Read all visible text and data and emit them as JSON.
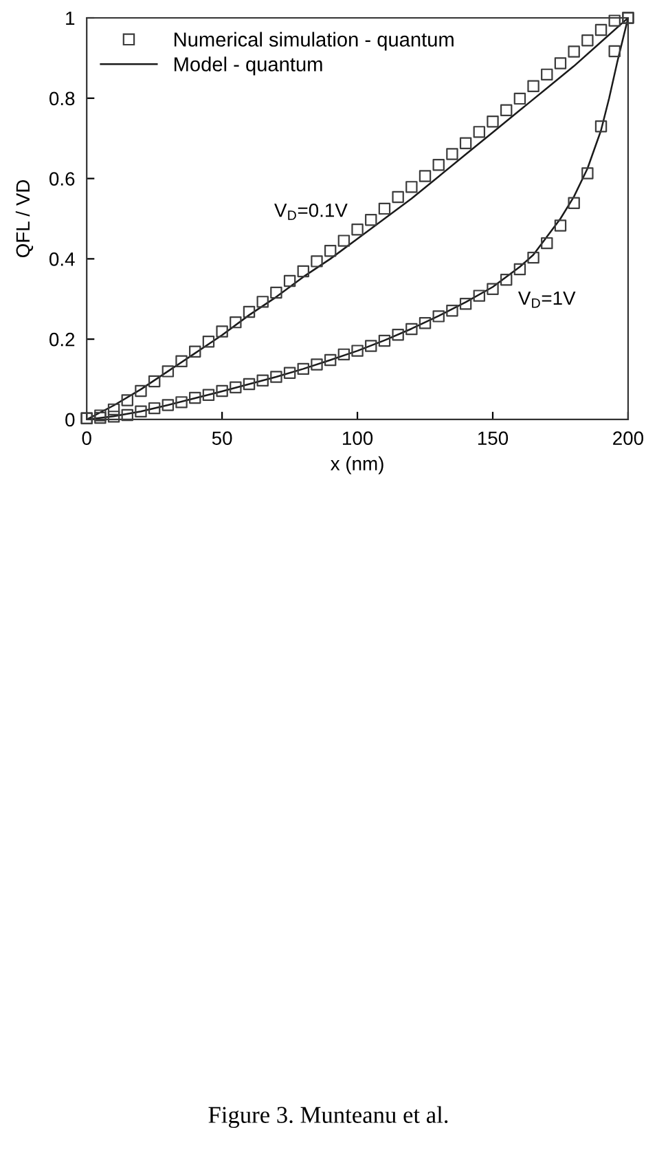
{
  "chart_data": {
    "type": "scatter",
    "xlabel": "x (nm)",
    "ylabel": "QFL / VD",
    "xlim": [
      0,
      200
    ],
    "xticks": [
      0,
      50,
      100,
      150,
      200
    ],
    "ylim": [
      0,
      1
    ],
    "yticks": [
      0,
      0.2,
      0.4,
      0.6,
      0.8,
      1
    ],
    "legend": "top left",
    "marker": "square",
    "series": [
      {
        "name": "Numerical simulation - quantum",
        "color": "#3c3c3c",
        "x": [
          0,
          5,
          10,
          15,
          20,
          25,
          30,
          35,
          40,
          45,
          50,
          55,
          60,
          65,
          70,
          75,
          80,
          85,
          90,
          95,
          100,
          105,
          110,
          115,
          120,
          125,
          130,
          135,
          140,
          145,
          150,
          155,
          160,
          165,
          170,
          175,
          180,
          185,
          190,
          195,
          200,
          0,
          5,
          10,
          15,
          20,
          25,
          30,
          35,
          40,
          45,
          50,
          55,
          60,
          65,
          70,
          75,
          80,
          85,
          90,
          95,
          100,
          105,
          110,
          115,
          120,
          125,
          130,
          135,
          140,
          145,
          150,
          155,
          160,
          165,
          170,
          175,
          180,
          185,
          190,
          195,
          200
        ],
        "values": [
          0.003,
          0.01,
          0.025,
          0.048,
          0.071,
          0.095,
          0.12,
          0.145,
          0.169,
          0.194,
          0.219,
          0.242,
          0.268,
          0.293,
          0.316,
          0.345,
          0.369,
          0.394,
          0.42,
          0.445,
          0.473,
          0.497,
          0.525,
          0.554,
          0.579,
          0.606,
          0.634,
          0.661,
          0.688,
          0.716,
          0.742,
          0.77,
          0.799,
          0.83,
          0.859,
          0.887,
          0.916,
          0.944,
          0.97,
          0.993,
          1.0,
          0.003,
          0.004,
          0.007,
          0.011,
          0.02,
          0.028,
          0.036,
          0.043,
          0.054,
          0.061,
          0.071,
          0.08,
          0.088,
          0.097,
          0.106,
          0.116,
          0.126,
          0.137,
          0.148,
          0.162,
          0.171,
          0.183,
          0.196,
          0.211,
          0.225,
          0.24,
          0.257,
          0.271,
          0.288,
          0.308,
          0.325,
          0.348,
          0.374,
          0.403,
          0.439,
          0.483,
          0.539,
          0.613,
          0.73,
          0.917,
          1.0
        ]
      },
      {
        "name": "Model - quantum",
        "type": "line",
        "marker": "none",
        "line_style": "solid",
        "color": "#1a1a1a",
        "x": [
          0,
          10,
          20,
          30,
          40,
          50,
          60,
          70,
          80,
          90,
          100,
          110,
          120,
          130,
          140,
          150,
          160,
          170,
          180,
          190,
          200,
          null,
          0,
          10,
          20,
          30,
          40,
          50,
          60,
          70,
          80,
          90,
          100,
          110,
          120,
          130,
          140,
          150,
          160,
          165,
          170,
          175,
          180,
          185,
          190,
          193,
          196,
          198,
          200
        ],
        "values": [
          0,
          0.035,
          0.075,
          0.12,
          0.165,
          0.21,
          0.26,
          0.305,
          0.355,
          0.4,
          0.45,
          0.5,
          0.55,
          0.605,
          0.66,
          0.715,
          0.77,
          0.825,
          0.88,
          0.94,
          1.0,
          null,
          0,
          0.008,
          0.02,
          0.036,
          0.053,
          0.07,
          0.088,
          0.106,
          0.126,
          0.148,
          0.171,
          0.197,
          0.226,
          0.258,
          0.292,
          0.33,
          0.38,
          0.41,
          0.455,
          0.5,
          0.555,
          0.625,
          0.72,
          0.8,
          0.89,
          0.945,
          1.0
        ]
      }
    ],
    "annotations": [
      {
        "text": "V$_{D}$=0.1V",
        "x": 80,
        "y": 0.355
      },
      {
        "text": "V$_{D}$=1V",
        "x": 170,
        "y": 0.455
      },
      "Figure 3. Munteanu et al."
    ]
  }
}
